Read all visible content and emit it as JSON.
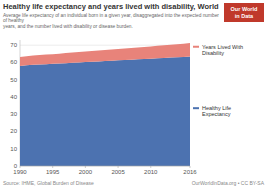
{
  "chart_data": {
    "type": "area",
    "stacked": true,
    "title": "Healthy life expectancy and years lived with disability, World",
    "subtitle": "Average life expectancy of an individual born in a given year, disaggregated into the expected number of healthy\nyears, and the number lived with disability or disease burden.",
    "x": [
      1990,
      1991,
      1992,
      1993,
      1994,
      1995,
      1996,
      1997,
      1998,
      1999,
      2000,
      2001,
      2002,
      2003,
      2004,
      2005,
      2006,
      2007,
      2008,
      2009,
      2010,
      2011,
      2012,
      2013,
      2014,
      2015,
      2016
    ],
    "series": [
      {
        "name": "Healthy Life\nExpectancy",
        "color": "#4c72b0",
        "values": [
          58.0,
          58.3,
          58.6,
          58.8,
          59.0,
          59.2,
          59.4,
          59.6,
          59.8,
          60.0,
          60.2,
          60.4,
          60.6,
          60.8,
          61.0,
          61.2,
          61.4,
          61.6,
          61.8,
          62.0,
          62.2,
          62.4,
          62.6,
          62.8,
          63.0,
          63.2,
          63.4
        ]
      },
      {
        "name": "Years Lived With\nDisability",
        "color": "#e8837a",
        "values": [
          5.2,
          5.3,
          5.4,
          5.5,
          5.6,
          5.6,
          5.7,
          5.8,
          5.9,
          6.0,
          6.1,
          6.2,
          6.3,
          6.4,
          6.5,
          6.6,
          6.7,
          6.8,
          6.9,
          7.0,
          7.1,
          7.2,
          7.3,
          7.4,
          7.5,
          7.6,
          7.8
        ]
      }
    ],
    "xlim": [
      1990,
      2016
    ],
    "xticks": [
      1990,
      1995,
      2000,
      2005,
      2010,
      2016
    ],
    "ylim": [
      0,
      73
    ],
    "yticks": [
      0,
      10,
      20,
      30,
      40,
      50,
      60,
      70
    ],
    "grid": true,
    "annotations": [
      "Source: IHME, Global Burden of Disease",
      "OurWorldInData.org • CC BY-SA",
      "Our World\nin Data"
    ]
  }
}
